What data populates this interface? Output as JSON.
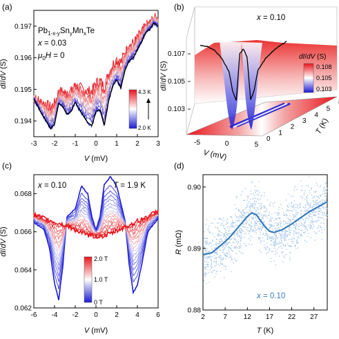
{
  "chart_data": [
    {
      "panel": "(a)",
      "type": "line",
      "annotations": {
        "compound": "Pb",
        "compound_sub1": "1-x-y",
        "compound_mid": "Sn",
        "compound_sub2": "y",
        "compound_mid2": "Mn",
        "compound_sub3": "x",
        "compound_end": "Te",
        "x_value": "x = 0.03",
        "field": "μ",
        "field_sub": "0",
        "field_end": "H = 0"
      },
      "xlabel": "V (mV)",
      "ylabel": "dI/dV (S)",
      "xlim": [
        -3,
        3
      ],
      "ylim": [
        0.1935,
        0.1975
      ],
      "xticks": [
        "-3",
        "-2",
        "-1",
        "0",
        "1",
        "2",
        "3"
      ],
      "yticks": [
        "0.194",
        "0.195",
        "0.196",
        "0.197"
      ],
      "colorbar": {
        "top_label": "4.3 K",
        "bottom_label": "2.0 K",
        "low_color": "#1b1bd6",
        "high_color": "#e8141b"
      },
      "series": [
        {
          "T": 2.0,
          "color": "#000000",
          "x": [
            -3.0,
            -2.8,
            -2.6,
            -2.4,
            -2.2,
            -2.0,
            -1.8,
            -1.6,
            -1.4,
            -1.2,
            -1.0,
            -0.8,
            -0.6,
            -0.4,
            -0.2,
            0.0,
            0.2,
            0.4,
            0.6,
            0.8,
            1.0,
            1.2,
            1.4,
            1.6,
            1.8,
            2.0,
            2.2,
            2.4,
            2.6,
            2.8,
            3.0
          ],
          "y": [
            0.1947,
            0.19445,
            0.1942,
            0.194,
            0.19375,
            0.1939,
            0.19455,
            0.19445,
            0.1942,
            0.1943,
            0.1946,
            0.19435,
            0.19415,
            0.19395,
            0.19385,
            0.1943,
            0.19435,
            0.19385,
            0.1946,
            0.1951,
            0.1953,
            0.19505,
            0.1956,
            0.1959,
            0.196,
            0.19625,
            0.1965,
            0.1968,
            0.1969,
            0.1971,
            0.197
          ]
        }
      ]
    },
    {
      "panel": "(b)",
      "type": "surface",
      "annotations": {
        "x_value": "x = 0.10"
      },
      "xlabel": "V (mV)",
      "ylabel": "dI/dV (S)",
      "zlabel": "T (K)",
      "xticks": [
        "-5",
        "0",
        "5"
      ],
      "yticks": [
        "0.103",
        "0.105",
        "0.107"
      ],
      "tticks": [
        "0",
        "1",
        "2",
        "3",
        "4",
        "5",
        "6"
      ],
      "colorbar": {
        "title": "dI/dV (S)",
        "labels": [
          "0.108",
          "0.105",
          "0.103"
        ]
      },
      "front_curve": {
        "x": [
          -6,
          -5,
          -4,
          -3,
          -2,
          -1.5,
          -1,
          -0.5,
          0,
          0.5,
          1,
          1.5,
          2,
          3,
          4,
          5,
          6
        ],
        "y": [
          0.1072,
          0.1071,
          0.1068,
          0.1062,
          0.1052,
          0.1038,
          0.1031,
          0.1065,
          0.1068,
          0.1062,
          0.1031,
          0.1038,
          0.1052,
          0.106,
          0.1065,
          0.1069,
          0.1072
        ]
      }
    },
    {
      "panel": "(c)",
      "type": "line",
      "annotations": {
        "x_value": "x = 0.10",
        "temperature": "T = 1.9 K"
      },
      "xlabel": "V (mV)",
      "ylabel": "dI/dV (S)",
      "xlim": [
        -6,
        6
      ],
      "ylim": [
        0.062,
        0.069
      ],
      "xticks": [
        "-6",
        "-4",
        "-2",
        "0",
        "2",
        "4",
        "6"
      ],
      "yticks": [
        "0.062",
        "0.064",
        "0.066",
        "0.068"
      ],
      "colorbar": {
        "labels": [
          "2.0 T",
          "1.0 T",
          "0 T"
        ],
        "low_color": "#1b1bd6",
        "high_color": "#e8141b"
      },
      "series": [
        {
          "B": 0.0,
          "x": [
            -6,
            -5,
            -4.5,
            -4,
            -3.6,
            -3.2,
            -2.8,
            -2,
            -1.4,
            -0.8,
            -0.4,
            0,
            0.4,
            0.8,
            1.4,
            2,
            2.8,
            3.2,
            3.6,
            4,
            4.5,
            5,
            6
          ],
          "y": [
            0.0665,
            0.0661,
            0.0652,
            0.0633,
            0.0624,
            0.0642,
            0.0668,
            0.0672,
            0.0684,
            0.068,
            0.0668,
            0.0661,
            0.0668,
            0.0685,
            0.0689,
            0.0684,
            0.0666,
            0.0643,
            0.0628,
            0.0632,
            0.0645,
            0.066,
            0.0667
          ]
        },
        {
          "B": 2.0,
          "x": [
            -6,
            -5,
            -4,
            -3,
            -2,
            -1,
            0,
            1,
            2,
            3,
            4,
            5,
            6
          ],
          "y": [
            0.0669,
            0.0667,
            0.0665,
            0.06635,
            0.0661,
            0.06585,
            0.06575,
            0.0658,
            0.06605,
            0.0663,
            0.06655,
            0.0668,
            0.0671
          ]
        }
      ]
    },
    {
      "panel": "(d)",
      "type": "scatter",
      "annotations": {
        "x_value": "x = 0.10"
      },
      "xlabel": "T (K)",
      "ylabel": "R (mΩ)",
      "xlim": [
        2,
        30
      ],
      "ylim": [
        0.88,
        0.902
      ],
      "xticks": [
        "2",
        "7",
        "12",
        "17",
        "22",
        "27"
      ],
      "yticks": [
        "0.88",
        "0.89",
        "0.90"
      ],
      "mean_curve": {
        "x": [
          2,
          4,
          6,
          8,
          10,
          12,
          13,
          14,
          15,
          16,
          17,
          18,
          20,
          22,
          24,
          26,
          28,
          30
        ],
        "y": [
          0.889,
          0.8893,
          0.8905,
          0.8918,
          0.8935,
          0.8952,
          0.8958,
          0.8955,
          0.8945,
          0.8935,
          0.8928,
          0.8926,
          0.8931,
          0.894,
          0.895,
          0.896,
          0.8968,
          0.8976
        ]
      },
      "scatter_color": "#a7c7ea",
      "mean_color": "#2f74b5"
    }
  ]
}
